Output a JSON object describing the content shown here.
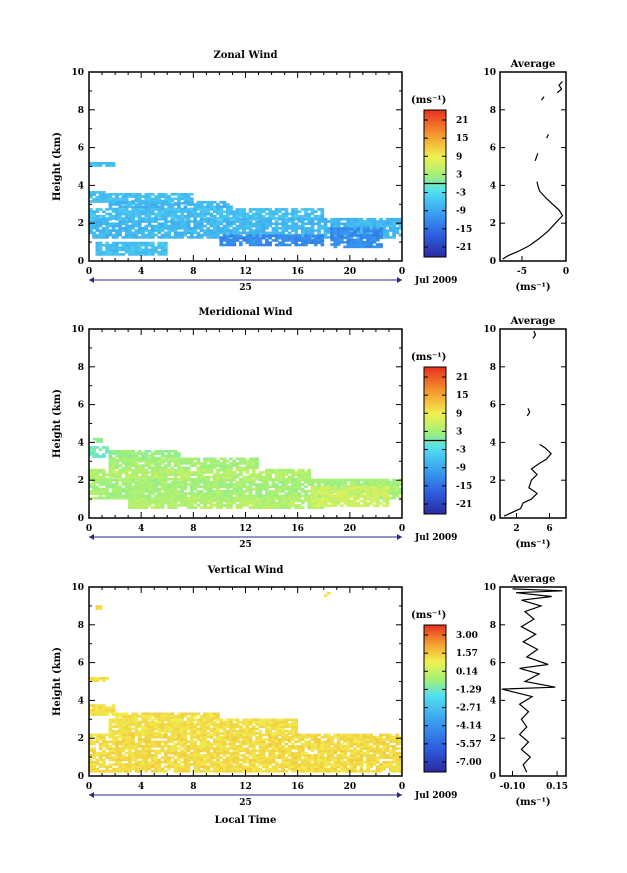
{
  "chart_data": [
    {
      "type": "heatmap",
      "title": "Zonal Wind",
      "xlabel": "",
      "ylabel": "Height (km)",
      "xlim": [
        0,
        24
      ],
      "ylim": [
        0,
        10
      ],
      "x_ticks": [
        "0",
        "4",
        "8",
        "12",
        "16",
        "20",
        "0"
      ],
      "y_ticks": [
        "0",
        "2",
        "4",
        "6",
        "8",
        "10"
      ],
      "date_day": "25",
      "date_month": "Jul 2009",
      "colorbar": {
        "label": "(ms⁻¹)",
        "ticks": [
          "21",
          "15",
          "9",
          "3",
          "-3",
          "-9",
          "-15",
          "-21"
        ],
        "range": [
          -24,
          24
        ]
      },
      "coverage": [
        {
          "x0": 0.0,
          "x1": 1.5,
          "y0": 3.1,
          "y1": 3.7,
          "v": -6
        },
        {
          "x0": 1.5,
          "x1": 8.0,
          "y0": 3.0,
          "y1": 3.5,
          "v": -6
        },
        {
          "x0": 1.5,
          "x1": 11.0,
          "y0": 2.7,
          "y1": 3.1,
          "v": -7
        },
        {
          "x0": 0.0,
          "x1": 18.0,
          "y0": 2.2,
          "y1": 2.7,
          "v": -6
        },
        {
          "x0": 0.0,
          "x1": 24.0,
          "y0": 1.2,
          "y1": 2.2,
          "v": -7
        },
        {
          "x0": 10.0,
          "x1": 18.0,
          "y0": 0.8,
          "y1": 1.4,
          "v": -12
        },
        {
          "x0": 18.5,
          "x1": 22.5,
          "y0": 0.7,
          "y1": 1.7,
          "v": -12
        },
        {
          "x0": 0.5,
          "x1": 6.0,
          "y0": 0.3,
          "y1": 1.0,
          "v": -6
        },
        {
          "x0": 0.0,
          "x1": 2.0,
          "y0": 5.0,
          "y1": 5.2,
          "v": -6
        }
      ],
      "profile": {
        "title": "Average",
        "xlabel": "(ms⁻¹)",
        "x_ticks": [
          "-5",
          "0"
        ],
        "xlim": [
          -7.5,
          0
        ],
        "y_ticks": [
          "0",
          "2",
          "4",
          "6",
          "8",
          "10"
        ],
        "ylim": [
          0,
          10
        ],
        "segments": [
          [
            [
              -7.2,
              0.1
            ],
            [
              -6.5,
              0.3
            ],
            [
              -5.5,
              0.5
            ],
            [
              -4.2,
              0.8
            ],
            [
              -3.0,
              1.2
            ],
            [
              -2.0,
              1.6
            ],
            [
              -1.2,
              2.0
            ],
            [
              -0.4,
              2.4
            ],
            [
              -0.8,
              2.7
            ],
            [
              -1.5,
              3.0
            ],
            [
              -2.2,
              3.3
            ],
            [
              -3.0,
              3.7
            ],
            [
              -3.2,
              4.0
            ],
            [
              -3.3,
              4.2
            ]
          ],
          [
            [
              -3.5,
              5.3
            ],
            [
              -3.2,
              5.7
            ]
          ],
          [
            [
              -2.2,
              6.5
            ],
            [
              -2.0,
              6.7
            ]
          ],
          [
            [
              -2.8,
              8.5
            ],
            [
              -2.5,
              8.7
            ]
          ],
          [
            [
              -1.0,
              8.9
            ],
            [
              -0.5,
              9.1
            ],
            [
              -0.8,
              9.3
            ],
            [
              -0.4,
              9.5
            ]
          ]
        ]
      }
    },
    {
      "type": "heatmap",
      "title": "Meridional Wind",
      "xlabel": "",
      "ylabel": "Height (km)",
      "xlim": [
        0,
        24
      ],
      "ylim": [
        0,
        10
      ],
      "x_ticks": [
        "0",
        "4",
        "8",
        "12",
        "16",
        "20",
        "0"
      ],
      "y_ticks": [
        "0",
        "2",
        "4",
        "6",
        "8",
        "10"
      ],
      "date_day": "25",
      "date_month": "Jul 2009",
      "colorbar": {
        "label": "(ms⁻¹)",
        "ticks": [
          "21",
          "15",
          "9",
          "3",
          "-3",
          "-9",
          "-15",
          "-21"
        ],
        "range": [
          -24,
          24
        ]
      },
      "coverage": [
        {
          "x0": 0.0,
          "x1": 1.5,
          "y0": 3.2,
          "y1": 3.8,
          "v": 0
        },
        {
          "x0": 1.5,
          "x1": 7.0,
          "y0": 3.0,
          "y1": 3.5,
          "v": 2
        },
        {
          "x0": 1.5,
          "x1": 13.0,
          "y0": 2.6,
          "y1": 3.1,
          "v": 3
        },
        {
          "x0": 0.0,
          "x1": 17.0,
          "y0": 2.0,
          "y1": 2.6,
          "v": 4
        },
        {
          "x0": 0.0,
          "x1": 24.0,
          "y0": 1.0,
          "y1": 2.0,
          "v": 3
        },
        {
          "x0": 3.0,
          "x1": 18.0,
          "y0": 0.5,
          "y1": 1.1,
          "v": 4
        },
        {
          "x0": 17.0,
          "x1": 23.0,
          "y0": 0.6,
          "y1": 1.6,
          "v": 6
        },
        {
          "x0": 0.3,
          "x1": 1.0,
          "y0": 4.0,
          "y1": 4.2,
          "v": 2
        }
      ],
      "profile": {
        "title": "Average",
        "xlabel": "(ms⁻¹)",
        "x_ticks": [
          "2",
          "6"
        ],
        "xlim": [
          0,
          8
        ],
        "y_ticks": [
          "0",
          "2",
          "4",
          "6",
          "8",
          "10"
        ],
        "ylim": [
          0,
          10
        ],
        "segments": [
          [
            [
              0.5,
              0.1
            ],
            [
              1.5,
              0.3
            ],
            [
              2.5,
              0.5
            ],
            [
              2.8,
              0.8
            ],
            [
              3.8,
              1.0
            ],
            [
              4.5,
              1.3
            ],
            [
              3.5,
              1.6
            ],
            [
              3.8,
              2.0
            ],
            [
              4.5,
              2.3
            ],
            [
              3.8,
              2.6
            ],
            [
              4.8,
              2.9
            ],
            [
              5.6,
              3.1
            ],
            [
              6.2,
              3.4
            ],
            [
              5.5,
              3.7
            ],
            [
              4.8,
              3.9
            ]
          ],
          [
            [
              3.3,
              5.4
            ],
            [
              3.6,
              5.6
            ],
            [
              3.4,
              5.8
            ]
          ],
          [
            [
              4.0,
              9.5
            ],
            [
              4.3,
              9.7
            ],
            [
              4.1,
              9.9
            ]
          ]
        ]
      }
    },
    {
      "type": "heatmap",
      "title": "Vertical Wind",
      "xlabel": "Local Time",
      "ylabel": "Height (km)",
      "xlim": [
        0,
        24
      ],
      "ylim": [
        0,
        10
      ],
      "x_ticks": [
        "0",
        "4",
        "8",
        "12",
        "16",
        "20",
        "0"
      ],
      "y_ticks": [
        "0",
        "2",
        "4",
        "6",
        "8",
        "10"
      ],
      "date_day": "25",
      "date_month": "Jul 2009",
      "colorbar": {
        "label": "(ms⁻¹)",
        "ticks": [
          "3.00",
          "1.57",
          "0.14",
          "-1.29",
          "-2.71",
          "-4.14",
          "-5.57",
          "-7.00"
        ],
        "range": [
          -8,
          4
        ]
      },
      "coverage": [
        {
          "x0": 0.0,
          "x1": 2.0,
          "y0": 3.2,
          "y1": 3.7,
          "v": 0.5
        },
        {
          "x0": 2.0,
          "x1": 10.0,
          "y0": 3.0,
          "y1": 3.3,
          "v": 0.5
        },
        {
          "x0": 1.5,
          "x1": 16.0,
          "y0": 2.2,
          "y1": 3.0,
          "v": 0.5
        },
        {
          "x0": 0.0,
          "x1": 24.0,
          "y0": 0.2,
          "y1": 2.2,
          "v": 0.6
        },
        {
          "x0": 0.0,
          "x1": 1.5,
          "y0": 5.0,
          "y1": 5.2,
          "v": 0.5
        },
        {
          "x0": 0.5,
          "x1": 1.0,
          "y0": 8.8,
          "y1": 9.0,
          "v": 0.5
        },
        {
          "x0": 18.0,
          "x1": 18.4,
          "y0": 9.5,
          "y1": 9.7,
          "v": 0.5
        }
      ],
      "profile": {
        "title": "Average",
        "xlabel": "(ms⁻¹)",
        "x_ticks": [
          "-0.10",
          "0.15"
        ],
        "xlim": [
          -0.17,
          0.2
        ],
        "y_ticks": [
          "0",
          "2",
          "4",
          "6",
          "8",
          "10"
        ],
        "ylim": [
          0,
          10
        ],
        "segments": [
          [
            [
              -0.02,
              0.2
            ],
            [
              -0.04,
              0.6
            ],
            [
              0.0,
              1.0
            ],
            [
              -0.05,
              1.4
            ],
            [
              -0.01,
              1.8
            ],
            [
              -0.06,
              2.2
            ],
            [
              -0.02,
              2.6
            ],
            [
              -0.05,
              3.0
            ],
            [
              -0.01,
              3.4
            ],
            [
              -0.06,
              3.8
            ],
            [
              0.01,
              4.2
            ],
            [
              -0.16,
              4.6
            ],
            [
              0.14,
              4.7
            ],
            [
              -0.03,
              5.0
            ],
            [
              0.05,
              5.4
            ],
            [
              -0.06,
              5.7
            ],
            [
              0.1,
              5.9
            ],
            [
              -0.02,
              6.3
            ],
            [
              0.04,
              6.7
            ],
            [
              -0.04,
              7.1
            ],
            [
              0.03,
              7.5
            ],
            [
              -0.05,
              7.9
            ],
            [
              0.02,
              8.3
            ],
            [
              -0.03,
              8.7
            ],
            [
              0.06,
              9.0
            ],
            [
              -0.05,
              9.3
            ],
            [
              0.12,
              9.5
            ],
            [
              -0.08,
              9.7
            ],
            [
              0.18,
              9.8
            ],
            [
              -0.1,
              9.9
            ]
          ]
        ]
      }
    }
  ]
}
